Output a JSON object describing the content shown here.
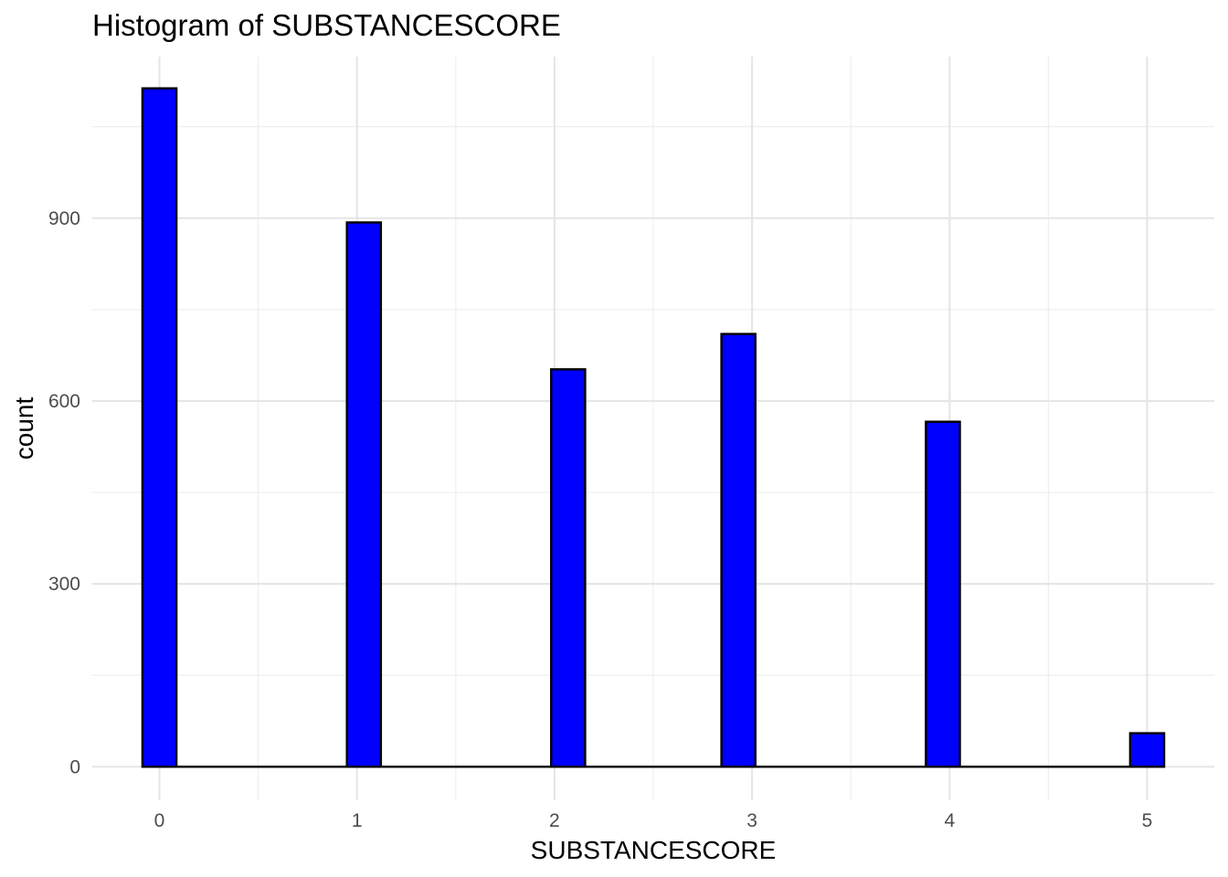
{
  "chart_data": {
    "type": "bar",
    "title": "Histogram of SUBSTANCESCORE",
    "xlabel": "SUBSTANCESCORE",
    "ylabel": "count",
    "x_ticks": [
      0,
      1,
      2,
      3,
      4,
      5
    ],
    "y_ticks": [
      0,
      300,
      600,
      900
    ],
    "xlim": [
      -0.34,
      5.34
    ],
    "ylim": [
      -55,
      1165
    ],
    "bin_width": 0.172,
    "bins": [
      {
        "center": 0.0,
        "count": 1113
      },
      {
        "center": 1.035,
        "count": 893
      },
      {
        "center": 2.069,
        "count": 652
      },
      {
        "center": 2.931,
        "count": 710
      },
      {
        "center": 3.966,
        "count": 566
      },
      {
        "center": 5.0,
        "count": 55
      }
    ],
    "bar_color": "#0000ff",
    "bar_outline": "#000000",
    "grid": true
  }
}
